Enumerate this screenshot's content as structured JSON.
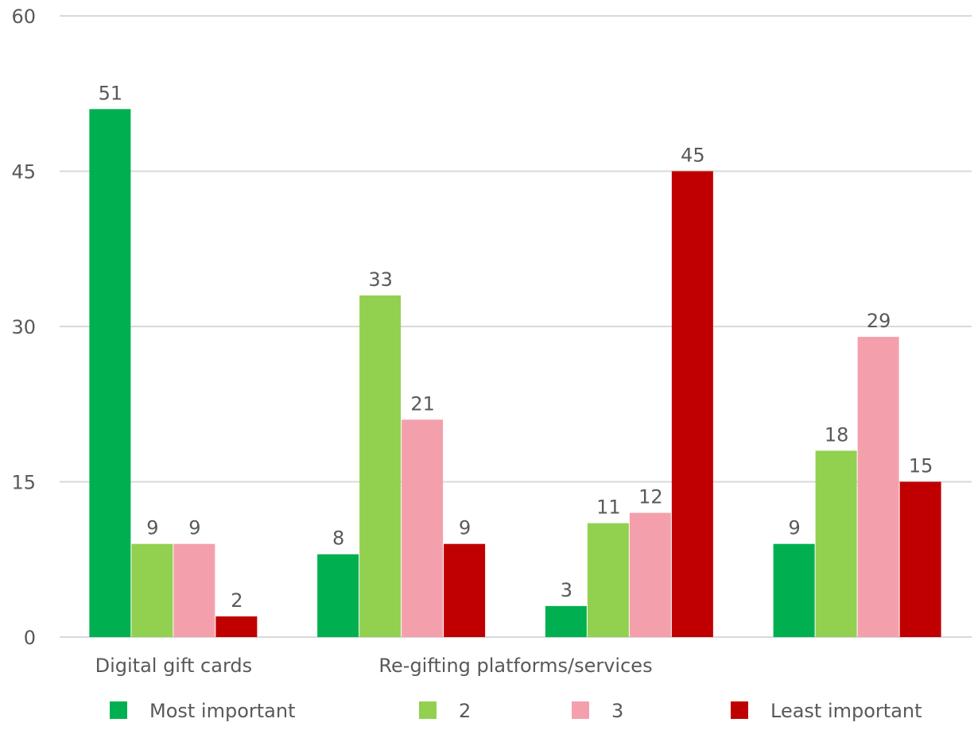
{
  "chart_data": {
    "type": "bar",
    "title": "",
    "xlabel": "",
    "ylabel": "",
    "ylim": [
      0,
      60
    ],
    "yticks": [
      0,
      15,
      30,
      45,
      60
    ],
    "grid": true,
    "legend_position": "bottom",
    "categories": [
      "Digital gift cards",
      "",
      "Re-gifting platforms/services",
      ""
    ],
    "series": [
      {
        "name": "Most important",
        "color": "#00b050",
        "values": [
          51,
          8,
          3,
          9
        ]
      },
      {
        "name": "2",
        "color": "#92d050",
        "values": [
          9,
          33,
          11,
          18
        ]
      },
      {
        "name": "3",
        "color": "#f4a0ac",
        "values": [
          9,
          21,
          12,
          29
        ]
      },
      {
        "name": "Least important",
        "color": "#c00000",
        "values": [
          2,
          9,
          45,
          15
        ]
      }
    ]
  }
}
